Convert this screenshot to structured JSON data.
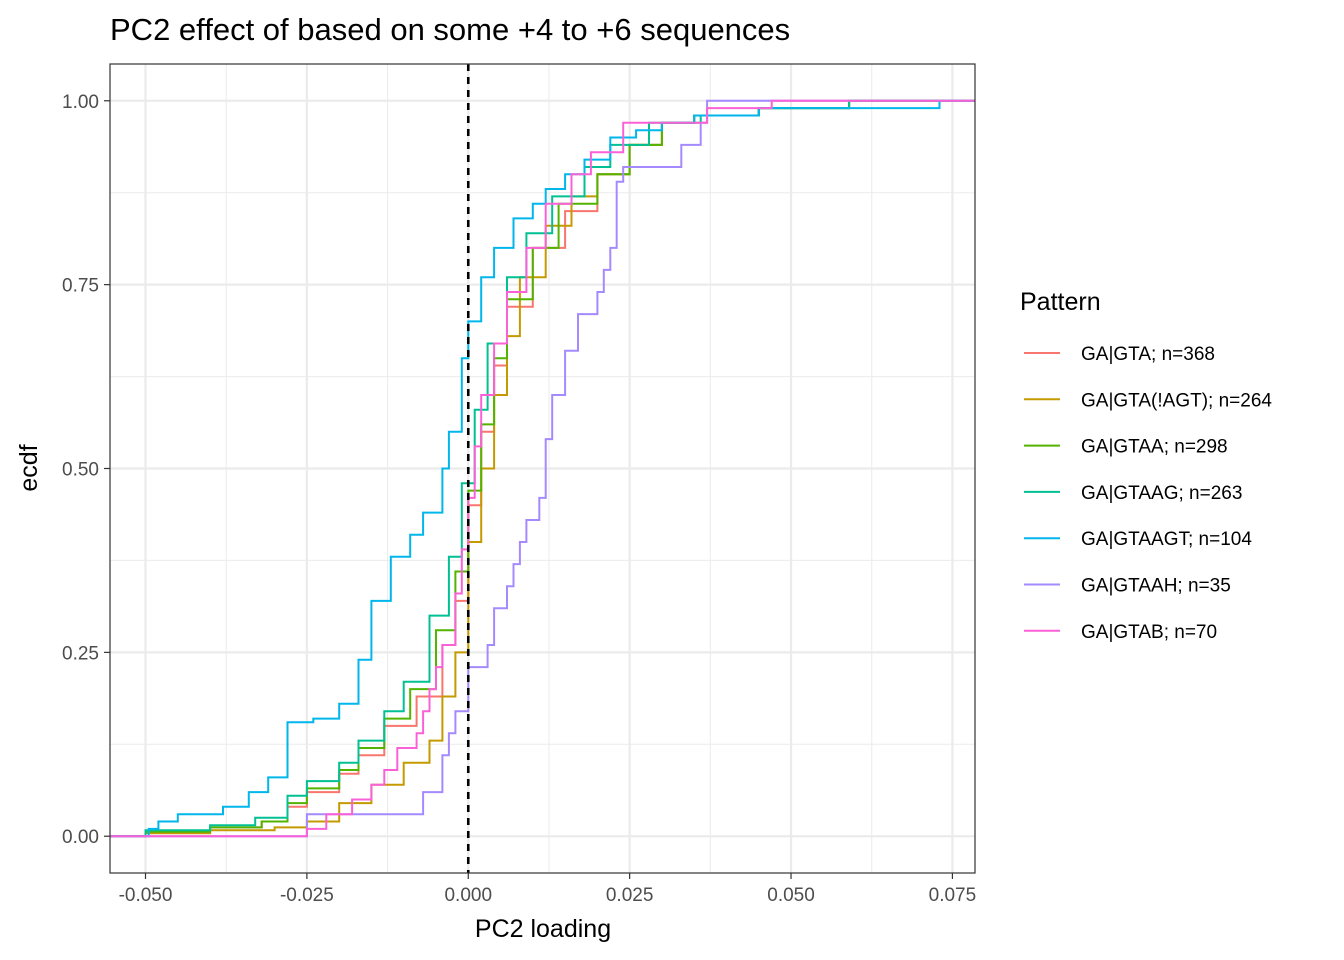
{
  "chart_data": {
    "type": "line",
    "subtype": "ecdf-step",
    "title": "PC2 effect of based on some +4 to +6 sequences",
    "xlabel": "PC2 loading",
    "ylabel": "ecdf",
    "xlim": [
      -0.0555,
      0.0785
    ],
    "ylim": [
      -0.05,
      1.05
    ],
    "x_ticks": [
      -0.05,
      -0.025,
      0.0,
      0.025,
      0.05,
      0.075
    ],
    "x_tick_labels": [
      "-0.050",
      "-0.025",
      "0.000",
      "0.025",
      "0.050",
      "0.075"
    ],
    "y_ticks": [
      0.0,
      0.25,
      0.5,
      0.75,
      1.0
    ],
    "y_tick_labels": [
      "0.00",
      "0.25",
      "0.50",
      "0.75",
      "1.00"
    ],
    "grid": true,
    "reference_line": {
      "x": 0.0,
      "style": "dashed",
      "color": "#000000"
    },
    "legend": {
      "title": "Pattern",
      "position": "right"
    },
    "series": [
      {
        "name": "GA|GTA; n=368",
        "color": "#F8766D",
        "points": [
          [
            -0.0555,
            0
          ],
          [
            -0.05,
            0.005
          ],
          [
            -0.04,
            0.012
          ],
          [
            -0.032,
            0.02
          ],
          [
            -0.028,
            0.04
          ],
          [
            -0.025,
            0.06
          ],
          [
            -0.02,
            0.085
          ],
          [
            -0.017,
            0.11
          ],
          [
            -0.013,
            0.15
          ],
          [
            -0.008,
            0.19
          ],
          [
            -0.004,
            0.26
          ],
          [
            -0.002,
            0.32
          ],
          [
            0,
            0.45
          ],
          [
            0.002,
            0.55
          ],
          [
            0.004,
            0.64
          ],
          [
            0.006,
            0.72
          ],
          [
            0.01,
            0.8
          ],
          [
            0.015,
            0.85
          ],
          [
            0.02,
            0.9
          ],
          [
            0.025,
            0.94
          ],
          [
            0.03,
            0.97
          ],
          [
            0.035,
            0.98
          ],
          [
            0.045,
            0.99
          ],
          [
            0.059,
            1.0
          ],
          [
            0.0785,
            1.0
          ]
        ]
      },
      {
        "name": "GA|GTA(!AGT); n=264",
        "color": "#C49A00",
        "points": [
          [
            -0.0555,
            0
          ],
          [
            -0.05,
            0.004
          ],
          [
            -0.04,
            0.008
          ],
          [
            -0.03,
            0.012
          ],
          [
            -0.025,
            0.02
          ],
          [
            -0.02,
            0.045
          ],
          [
            -0.015,
            0.07
          ],
          [
            -0.01,
            0.1
          ],
          [
            -0.006,
            0.13
          ],
          [
            -0.004,
            0.19
          ],
          [
            -0.002,
            0.25
          ],
          [
            0,
            0.4
          ],
          [
            0.002,
            0.5
          ],
          [
            0.004,
            0.6
          ],
          [
            0.006,
            0.68
          ],
          [
            0.008,
            0.76
          ],
          [
            0.012,
            0.83
          ],
          [
            0.016,
            0.87
          ],
          [
            0.02,
            0.9
          ],
          [
            0.025,
            0.94
          ],
          [
            0.03,
            0.97
          ],
          [
            0.035,
            0.98
          ],
          [
            0.045,
            0.99
          ],
          [
            0.059,
            1.0
          ],
          [
            0.0785,
            1.0
          ]
        ]
      },
      {
        "name": "GA|GTAA; n=298",
        "color": "#53B400",
        "points": [
          [
            -0.0555,
            0
          ],
          [
            -0.05,
            0.006
          ],
          [
            -0.04,
            0.012
          ],
          [
            -0.032,
            0.02
          ],
          [
            -0.028,
            0.045
          ],
          [
            -0.025,
            0.065
          ],
          [
            -0.02,
            0.09
          ],
          [
            -0.017,
            0.12
          ],
          [
            -0.013,
            0.16
          ],
          [
            -0.009,
            0.2
          ],
          [
            -0.005,
            0.28
          ],
          [
            -0.002,
            0.36
          ],
          [
            0,
            0.47
          ],
          [
            0.002,
            0.56
          ],
          [
            0.004,
            0.65
          ],
          [
            0.006,
            0.73
          ],
          [
            0.01,
            0.8
          ],
          [
            0.014,
            0.86
          ],
          [
            0.02,
            0.9
          ],
          [
            0.025,
            0.94
          ],
          [
            0.03,
            0.97
          ],
          [
            0.035,
            0.98
          ],
          [
            0.045,
            0.99
          ],
          [
            0.059,
            1.0
          ],
          [
            0.0785,
            1.0
          ]
        ]
      },
      {
        "name": "GA|GTAAG; n=263",
        "color": "#00C094",
        "points": [
          [
            -0.0555,
            0
          ],
          [
            -0.05,
            0.008
          ],
          [
            -0.04,
            0.015
          ],
          [
            -0.033,
            0.025
          ],
          [
            -0.028,
            0.055
          ],
          [
            -0.025,
            0.075
          ],
          [
            -0.02,
            0.1
          ],
          [
            -0.017,
            0.13
          ],
          [
            -0.013,
            0.17
          ],
          [
            -0.01,
            0.21
          ],
          [
            -0.006,
            0.3
          ],
          [
            -0.003,
            0.38
          ],
          [
            -0.001,
            0.48
          ],
          [
            0.001,
            0.58
          ],
          [
            0.003,
            0.67
          ],
          [
            0.006,
            0.76
          ],
          [
            0.009,
            0.82
          ],
          [
            0.013,
            0.87
          ],
          [
            0.018,
            0.91
          ],
          [
            0.022,
            0.94
          ],
          [
            0.028,
            0.97
          ],
          [
            0.036,
            0.98
          ],
          [
            0.045,
            0.99
          ],
          [
            0.059,
            1.0
          ],
          [
            0.0785,
            1.0
          ]
        ]
      },
      {
        "name": "GA|GTAAGT; n=104",
        "color": "#00B6EB",
        "points": [
          [
            -0.0555,
            0
          ],
          [
            -0.0495,
            0.01
          ],
          [
            -0.048,
            0.02
          ],
          [
            -0.045,
            0.03
          ],
          [
            -0.038,
            0.04
          ],
          [
            -0.034,
            0.06
          ],
          [
            -0.031,
            0.08
          ],
          [
            -0.028,
            0.155
          ],
          [
            -0.024,
            0.16
          ],
          [
            -0.02,
            0.18
          ],
          [
            -0.017,
            0.24
          ],
          [
            -0.015,
            0.32
          ],
          [
            -0.012,
            0.38
          ],
          [
            -0.009,
            0.41
          ],
          [
            -0.007,
            0.44
          ],
          [
            -0.004,
            0.5
          ],
          [
            -0.003,
            0.55
          ],
          [
            -0.001,
            0.65
          ],
          [
            0,
            0.7
          ],
          [
            0.002,
            0.76
          ],
          [
            0.004,
            0.8
          ],
          [
            0.007,
            0.84
          ],
          [
            0.01,
            0.86
          ],
          [
            0.012,
            0.88
          ],
          [
            0.015,
            0.9
          ],
          [
            0.018,
            0.92
          ],
          [
            0.022,
            0.95
          ],
          [
            0.026,
            0.96
          ],
          [
            0.03,
            0.97
          ],
          [
            0.035,
            0.98
          ],
          [
            0.045,
            0.99
          ],
          [
            0.072,
            0.99
          ],
          [
            0.073,
            1.0
          ],
          [
            0.0785,
            1.0
          ]
        ]
      },
      {
        "name": "GA|GTAAH; n=35",
        "color": "#A58AFF",
        "points": [
          [
            -0.0555,
            0
          ],
          [
            -0.026,
            0
          ],
          [
            -0.025,
            0.03
          ],
          [
            -0.012,
            0.03
          ],
          [
            -0.007,
            0.06
          ],
          [
            -0.004,
            0.11
          ],
          [
            -0.003,
            0.14
          ],
          [
            -0.002,
            0.17
          ],
          [
            0,
            0.23
          ],
          [
            0.003,
            0.26
          ],
          [
            0.004,
            0.31
          ],
          [
            0.006,
            0.34
          ],
          [
            0.007,
            0.37
          ],
          [
            0.008,
            0.4
          ],
          [
            0.009,
            0.43
          ],
          [
            0.011,
            0.46
          ],
          [
            0.012,
            0.54
          ],
          [
            0.013,
            0.6
          ],
          [
            0.015,
            0.66
          ],
          [
            0.017,
            0.71
          ],
          [
            0.02,
            0.74
          ],
          [
            0.021,
            0.77
          ],
          [
            0.022,
            0.8
          ],
          [
            0.023,
            0.89
          ],
          [
            0.024,
            0.91
          ],
          [
            0.032,
            0.91
          ],
          [
            0.033,
            0.94
          ],
          [
            0.036,
            0.97
          ],
          [
            0.037,
            1.0
          ],
          [
            0.0785,
            1.0
          ]
        ]
      },
      {
        "name": "GA|GTAB; n=70",
        "color": "#FB61D7",
        "points": [
          [
            -0.0555,
            0
          ],
          [
            -0.03,
            0
          ],
          [
            -0.025,
            0.01
          ],
          [
            -0.022,
            0.03
          ],
          [
            -0.018,
            0.05
          ],
          [
            -0.015,
            0.07
          ],
          [
            -0.013,
            0.09
          ],
          [
            -0.011,
            0.12
          ],
          [
            -0.008,
            0.14
          ],
          [
            -0.007,
            0.17
          ],
          [
            -0.006,
            0.2
          ],
          [
            -0.005,
            0.23
          ],
          [
            -0.004,
            0.26
          ],
          [
            -0.002,
            0.33
          ],
          [
            -0.001,
            0.39
          ],
          [
            0,
            0.46
          ],
          [
            0.001,
            0.53
          ],
          [
            0.002,
            0.6
          ],
          [
            0.004,
            0.67
          ],
          [
            0.006,
            0.74
          ],
          [
            0.009,
            0.8
          ],
          [
            0.012,
            0.86
          ],
          [
            0.016,
            0.9
          ],
          [
            0.019,
            0.93
          ],
          [
            0.024,
            0.97
          ],
          [
            0.028,
            0.97
          ],
          [
            0.037,
            0.99
          ],
          [
            0.047,
            1.0
          ],
          [
            0.0785,
            1.0
          ]
        ]
      }
    ]
  }
}
